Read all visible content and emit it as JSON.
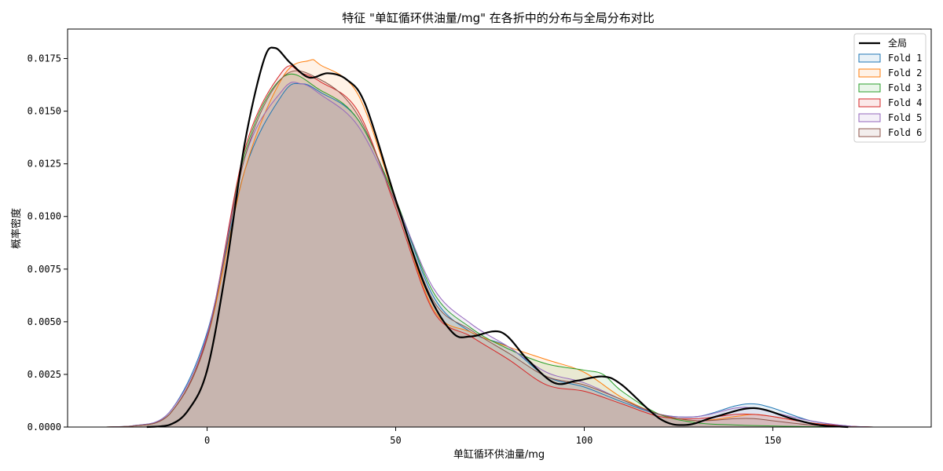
{
  "chart_data": {
    "type": "area",
    "title": "特征 \"单缸循环供油量/mg\" 在各折中的分布与全局分布对比",
    "xlabel": "单缸循环供油量/mg",
    "ylabel": "概率密度",
    "xlim": [
      -37,
      192
    ],
    "ylim": [
      0,
      0.0189
    ],
    "xticks": [
      0,
      50,
      100,
      150
    ],
    "xtick_labels": [
      "0",
      "50",
      "100",
      "150"
    ],
    "yticks": [
      0,
      0.0025,
      0.005,
      0.0075,
      0.01,
      0.0125,
      0.015,
      0.0175
    ],
    "ytick_labels": [
      "0.0000",
      "0.0025",
      "0.0050",
      "0.0075",
      "0.0100",
      "0.0125",
      "0.0150",
      "0.0175"
    ],
    "legend_position": "top-right",
    "grid": false,
    "series": [
      {
        "name": "Fold 1",
        "color": "#1f77b4",
        "fill": true,
        "points": [
          [
            -27,
            0
          ],
          [
            -20,
            5e-05
          ],
          [
            -10,
            0.0007
          ],
          [
            0,
            0.0045
          ],
          [
            10,
            0.0122
          ],
          [
            20,
            0.0158
          ],
          [
            25,
            0.0163
          ],
          [
            30,
            0.0159
          ],
          [
            40,
            0.0146
          ],
          [
            50,
            0.0108
          ],
          [
            60,
            0.0062
          ],
          [
            70,
            0.0045
          ],
          [
            80,
            0.0038
          ],
          [
            90,
            0.0024
          ],
          [
            100,
            0.0019
          ],
          [
            110,
            0.0012
          ],
          [
            120,
            0.0006
          ],
          [
            130,
            0.0005
          ],
          [
            140,
            0.001
          ],
          [
            145,
            0.0011
          ],
          [
            150,
            0.0009
          ],
          [
            160,
            0.0003
          ],
          [
            170,
            5e-05
          ],
          [
            177,
            0
          ]
        ]
      },
      {
        "name": "Fold 2",
        "color": "#ff7f0e",
        "fill": true,
        "points": [
          [
            -27,
            0
          ],
          [
            -20,
            4e-05
          ],
          [
            -10,
            0.0006
          ],
          [
            0,
            0.0042
          ],
          [
            10,
            0.0122
          ],
          [
            20,
            0.0166
          ],
          [
            27,
            0.0174
          ],
          [
            30,
            0.0172
          ],
          [
            40,
            0.0158
          ],
          [
            50,
            0.0107
          ],
          [
            60,
            0.0056
          ],
          [
            70,
            0.0045
          ],
          [
            80,
            0.0038
          ],
          [
            90,
            0.0032
          ],
          [
            100,
            0.0026
          ],
          [
            110,
            0.0014
          ],
          [
            120,
            0.0006
          ],
          [
            130,
            0.0003
          ],
          [
            140,
            0.0005
          ],
          [
            145,
            0.0006
          ],
          [
            150,
            0.0005
          ],
          [
            160,
            0.0002
          ],
          [
            170,
            4e-05
          ],
          [
            177,
            0
          ]
        ]
      },
      {
        "name": "Fold 3",
        "color": "#2ca02c",
        "fill": true,
        "points": [
          [
            -27,
            0
          ],
          [
            -20,
            4e-05
          ],
          [
            -10,
            0.0006
          ],
          [
            0,
            0.0043
          ],
          [
            10,
            0.013
          ],
          [
            20,
            0.0166
          ],
          [
            30,
            0.016
          ],
          [
            40,
            0.0146
          ],
          [
            50,
            0.0108
          ],
          [
            60,
            0.0064
          ],
          [
            70,
            0.0047
          ],
          [
            80,
            0.0037
          ],
          [
            90,
            0.003
          ],
          [
            100,
            0.0027
          ],
          [
            105,
            0.0025
          ],
          [
            110,
            0.0017
          ],
          [
            120,
            0.0006
          ],
          [
            130,
            0.0002
          ],
          [
            140,
            0.0001
          ],
          [
            150,
            5e-05
          ],
          [
            160,
            2e-05
          ],
          [
            177,
            0
          ]
        ]
      },
      {
        "name": "Fold 4",
        "color": "#d62728",
        "fill": true,
        "points": [
          [
            -27,
            0
          ],
          [
            -20,
            4e-05
          ],
          [
            -10,
            0.0006
          ],
          [
            0,
            0.0043
          ],
          [
            10,
            0.0132
          ],
          [
            20,
            0.0169
          ],
          [
            25,
            0.0168
          ],
          [
            30,
            0.0164
          ],
          [
            40,
            0.015
          ],
          [
            50,
            0.0104
          ],
          [
            60,
            0.0055
          ],
          [
            70,
            0.0043
          ],
          [
            80,
            0.0032
          ],
          [
            90,
            0.002
          ],
          [
            100,
            0.0017
          ],
          [
            110,
            0.0011
          ],
          [
            120,
            0.0005
          ],
          [
            130,
            0.0004
          ],
          [
            140,
            0.0006
          ],
          [
            145,
            0.0006
          ],
          [
            150,
            0.0005
          ],
          [
            160,
            0.0002
          ],
          [
            170,
            4e-05
          ],
          [
            177,
            0
          ]
        ]
      },
      {
        "name": "Fold 5",
        "color": "#9467bd",
        "fill": true,
        "points": [
          [
            -27,
            0
          ],
          [
            -20,
            5e-05
          ],
          [
            -10,
            0.0007
          ],
          [
            0,
            0.0044
          ],
          [
            10,
            0.0128
          ],
          [
            20,
            0.016
          ],
          [
            25,
            0.0163
          ],
          [
            30,
            0.0158
          ],
          [
            40,
            0.0143
          ],
          [
            50,
            0.0107
          ],
          [
            60,
            0.0066
          ],
          [
            70,
            0.0049
          ],
          [
            80,
            0.0038
          ],
          [
            90,
            0.0026
          ],
          [
            100,
            0.0021
          ],
          [
            110,
            0.0013
          ],
          [
            120,
            0.0006
          ],
          [
            130,
            0.0005
          ],
          [
            140,
            0.0009
          ],
          [
            145,
            0.0009
          ],
          [
            150,
            0.0007
          ],
          [
            160,
            0.0003
          ],
          [
            170,
            5e-05
          ],
          [
            177,
            0
          ]
        ]
      },
      {
        "name": "Fold 6",
        "color": "#8c564b",
        "fill": true,
        "points": [
          [
            -27,
            0
          ],
          [
            -20,
            4e-05
          ],
          [
            -10,
            0.0006
          ],
          [
            0,
            0.0042
          ],
          [
            10,
            0.0128
          ],
          [
            20,
            0.0166
          ],
          [
            30,
            0.0165
          ],
          [
            40,
            0.0148
          ],
          [
            50,
            0.0106
          ],
          [
            60,
            0.006
          ],
          [
            70,
            0.0046
          ],
          [
            80,
            0.0035
          ],
          [
            90,
            0.0024
          ],
          [
            100,
            0.002
          ],
          [
            110,
            0.0013
          ],
          [
            120,
            0.0006
          ],
          [
            130,
            0.0003
          ],
          [
            140,
            0.0004
          ],
          [
            145,
            0.0004
          ],
          [
            150,
            0.0003
          ],
          [
            160,
            0.0001
          ],
          [
            170,
            2e-05
          ],
          [
            177,
            0
          ]
        ]
      },
      {
        "name": "全局",
        "color": "#000000",
        "fill": false,
        "lineWidth": 2.2,
        "points": [
          [
            -16,
            0
          ],
          [
            -10,
            0.0001
          ],
          [
            -5,
            0.0008
          ],
          [
            0,
            0.0027
          ],
          [
            5,
            0.0075
          ],
          [
            10,
            0.0135
          ],
          [
            15,
            0.0174
          ],
          [
            18,
            0.018
          ],
          [
            22,
            0.0173
          ],
          [
            27,
            0.0166
          ],
          [
            32,
            0.0168
          ],
          [
            37,
            0.0165
          ],
          [
            42,
            0.0153
          ],
          [
            50,
            0.0108
          ],
          [
            58,
            0.0066
          ],
          [
            65,
            0.0045
          ],
          [
            70,
            0.0043
          ],
          [
            78,
            0.0045
          ],
          [
            85,
            0.0032
          ],
          [
            92,
            0.0021
          ],
          [
            98,
            0.0022
          ],
          [
            105,
            0.0024
          ],
          [
            110,
            0.002
          ],
          [
            120,
            0.0004
          ],
          [
            127,
            0.0001
          ],
          [
            135,
            0.0005
          ],
          [
            145,
            0.0009
          ],
          [
            155,
            0.0004
          ],
          [
            162,
            0.0001
          ],
          [
            170,
            0
          ]
        ]
      }
    ]
  }
}
